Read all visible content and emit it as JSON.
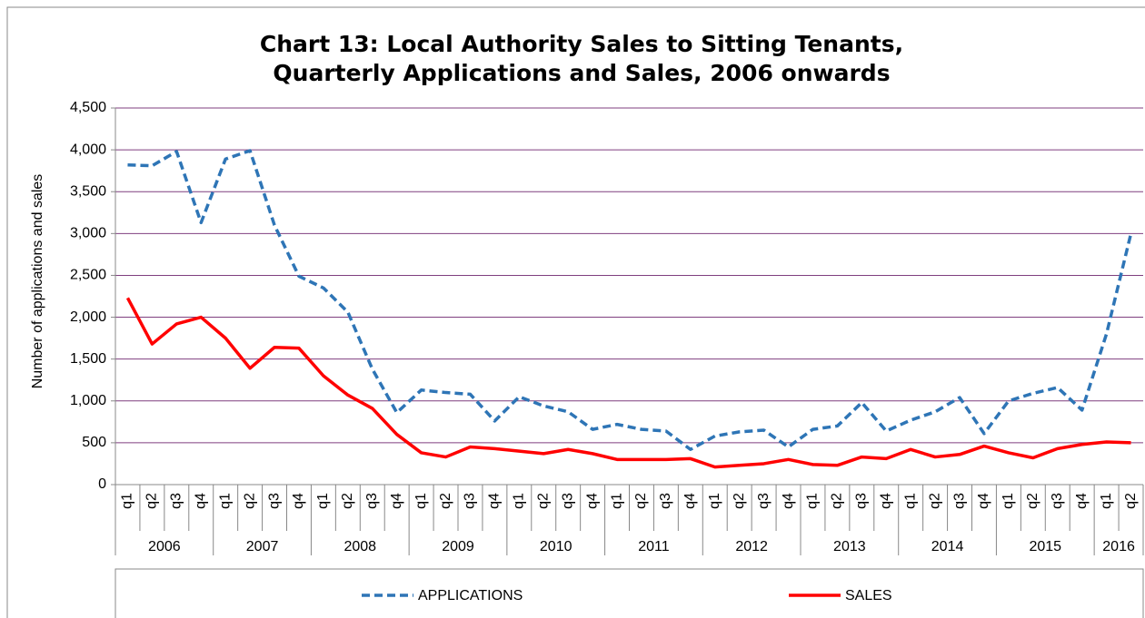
{
  "chart_data": {
    "type": "line",
    "title": [
      "Chart 13: Local Authority Sales to Sitting Tenants,",
      "Quarterly Applications and Sales, 2006 onwards"
    ],
    "y_label": "Number of applications and sales",
    "categories": [
      "q1",
      "q2",
      "q3",
      "q4",
      "q1",
      "q2",
      "q3",
      "q4",
      "q1",
      "q2",
      "q3",
      "q4",
      "q1",
      "q2",
      "q3",
      "q4",
      "q1",
      "q2",
      "q3",
      "q4",
      "q1",
      "q2",
      "q3",
      "q4",
      "q1",
      "q2",
      "q3",
      "q4",
      "q1",
      "q2",
      "q3",
      "q4",
      "q1",
      "q2",
      "q3",
      "q4",
      "q1",
      "q2",
      "q3",
      "q4",
      "q1",
      "q2"
    ],
    "years": [
      "2006",
      "2007",
      "2008",
      "2009",
      "2010",
      "2011",
      "2012",
      "2013",
      "2014",
      "2015",
      "2016"
    ],
    "series": [
      {
        "name": "APPLICATIONS",
        "color": "#2e75b6",
        "dashed": true,
        "values": [
          3820,
          3810,
          3980,
          3130,
          3890,
          3990,
          3100,
          2490,
          2350,
          2060,
          1380,
          860,
          1130,
          1100,
          1080,
          760,
          1050,
          940,
          870,
          660,
          720,
          660,
          640,
          420,
          580,
          630,
          650,
          450,
          660,
          700,
          980,
          640,
          770,
          870,
          1040,
          610,
          1000,
          1090,
          1160,
          890,
          1800,
          3000
        ]
      },
      {
        "name": "SALES",
        "color": "#ff0000",
        "dashed": false,
        "values": [
          2230,
          1680,
          1920,
          2000,
          1750,
          1390,
          1640,
          1630,
          1300,
          1070,
          910,
          600,
          380,
          330,
          450,
          430,
          400,
          370,
          420,
          370,
          300,
          300,
          300,
          310,
          210,
          230,
          250,
          300,
          240,
          230,
          330,
          310,
          420,
          330,
          360,
          460,
          380,
          320,
          430,
          480,
          510,
          500
        ]
      }
    ],
    "ylim": [
      0,
      4500
    ],
    "yticks": [
      0,
      500,
      {
        "value": 1000,
        "label": "1,000"
      },
      {
        "value": 1500,
        "label": "1,500"
      },
      {
        "value": 2000,
        "label": "2,000"
      },
      {
        "value": 2500,
        "label": "2,500"
      },
      {
        "value": 3000,
        "label": "3,000"
      },
      {
        "value": 3500,
        "label": "3,500"
      },
      {
        "value": 4000,
        "label": "4,000"
      },
      {
        "value": 4500,
        "label": "4,500"
      }
    ],
    "grid": true,
    "legend": "bottom"
  }
}
